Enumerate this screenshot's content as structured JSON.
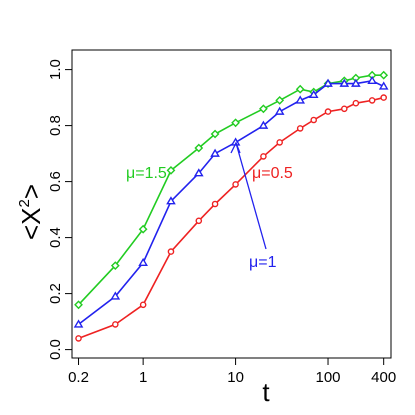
{
  "chart_data": {
    "type": "line",
    "xlabel": "t",
    "ylabel_base": "<X",
    "ylabel_sup": "2",
    "ylabel_tail": ">",
    "x_scale": "log",
    "xlim": [
      0.17,
      480
    ],
    "ylim": [
      -0.03,
      1.07
    ],
    "x_ticks": [
      0.2,
      1,
      10,
      100,
      400
    ],
    "x_tick_labels": [
      "0.2",
      "1",
      "10",
      "100",
      "400"
    ],
    "y_ticks": [
      0.0,
      0.2,
      0.4,
      0.6,
      0.8,
      1.0
    ],
    "y_tick_labels": [
      "0.0",
      "0.2",
      "0.4",
      "0.6",
      "0.8",
      "1.0"
    ],
    "grid": false,
    "series": [
      {
        "name": "μ=1.5",
        "color": "#22cc22",
        "marker": "diamond",
        "x": [
          0.2,
          0.5,
          1,
          2,
          4,
          6,
          10,
          20,
          30,
          50,
          70,
          100,
          150,
          200,
          300,
          400
        ],
        "y": [
          0.16,
          0.3,
          0.43,
          0.64,
          0.72,
          0.77,
          0.81,
          0.86,
          0.89,
          0.93,
          0.92,
          0.95,
          0.96,
          0.97,
          0.98,
          0.98
        ]
      },
      {
        "name": "μ=1",
        "color": "#2222ee",
        "marker": "triangle",
        "x": [
          0.2,
          0.5,
          1,
          2,
          4,
          6,
          10,
          20,
          30,
          50,
          70,
          100,
          150,
          200,
          300,
          400
        ],
        "y": [
          0.09,
          0.19,
          0.31,
          0.53,
          0.63,
          0.7,
          0.74,
          0.8,
          0.85,
          0.89,
          0.91,
          0.95,
          0.95,
          0.95,
          0.96,
          0.94
        ]
      },
      {
        "name": "μ=0.5",
        "color": "#ee2222",
        "marker": "circle",
        "x": [
          0.2,
          0.5,
          1,
          2,
          4,
          6,
          10,
          20,
          30,
          50,
          70,
          100,
          150,
          200,
          300,
          400
        ],
        "y": [
          0.04,
          0.09,
          0.16,
          0.35,
          0.46,
          0.52,
          0.59,
          0.69,
          0.74,
          0.79,
          0.82,
          0.85,
          0.86,
          0.88,
          0.89,
          0.9
        ]
      }
    ]
  }
}
